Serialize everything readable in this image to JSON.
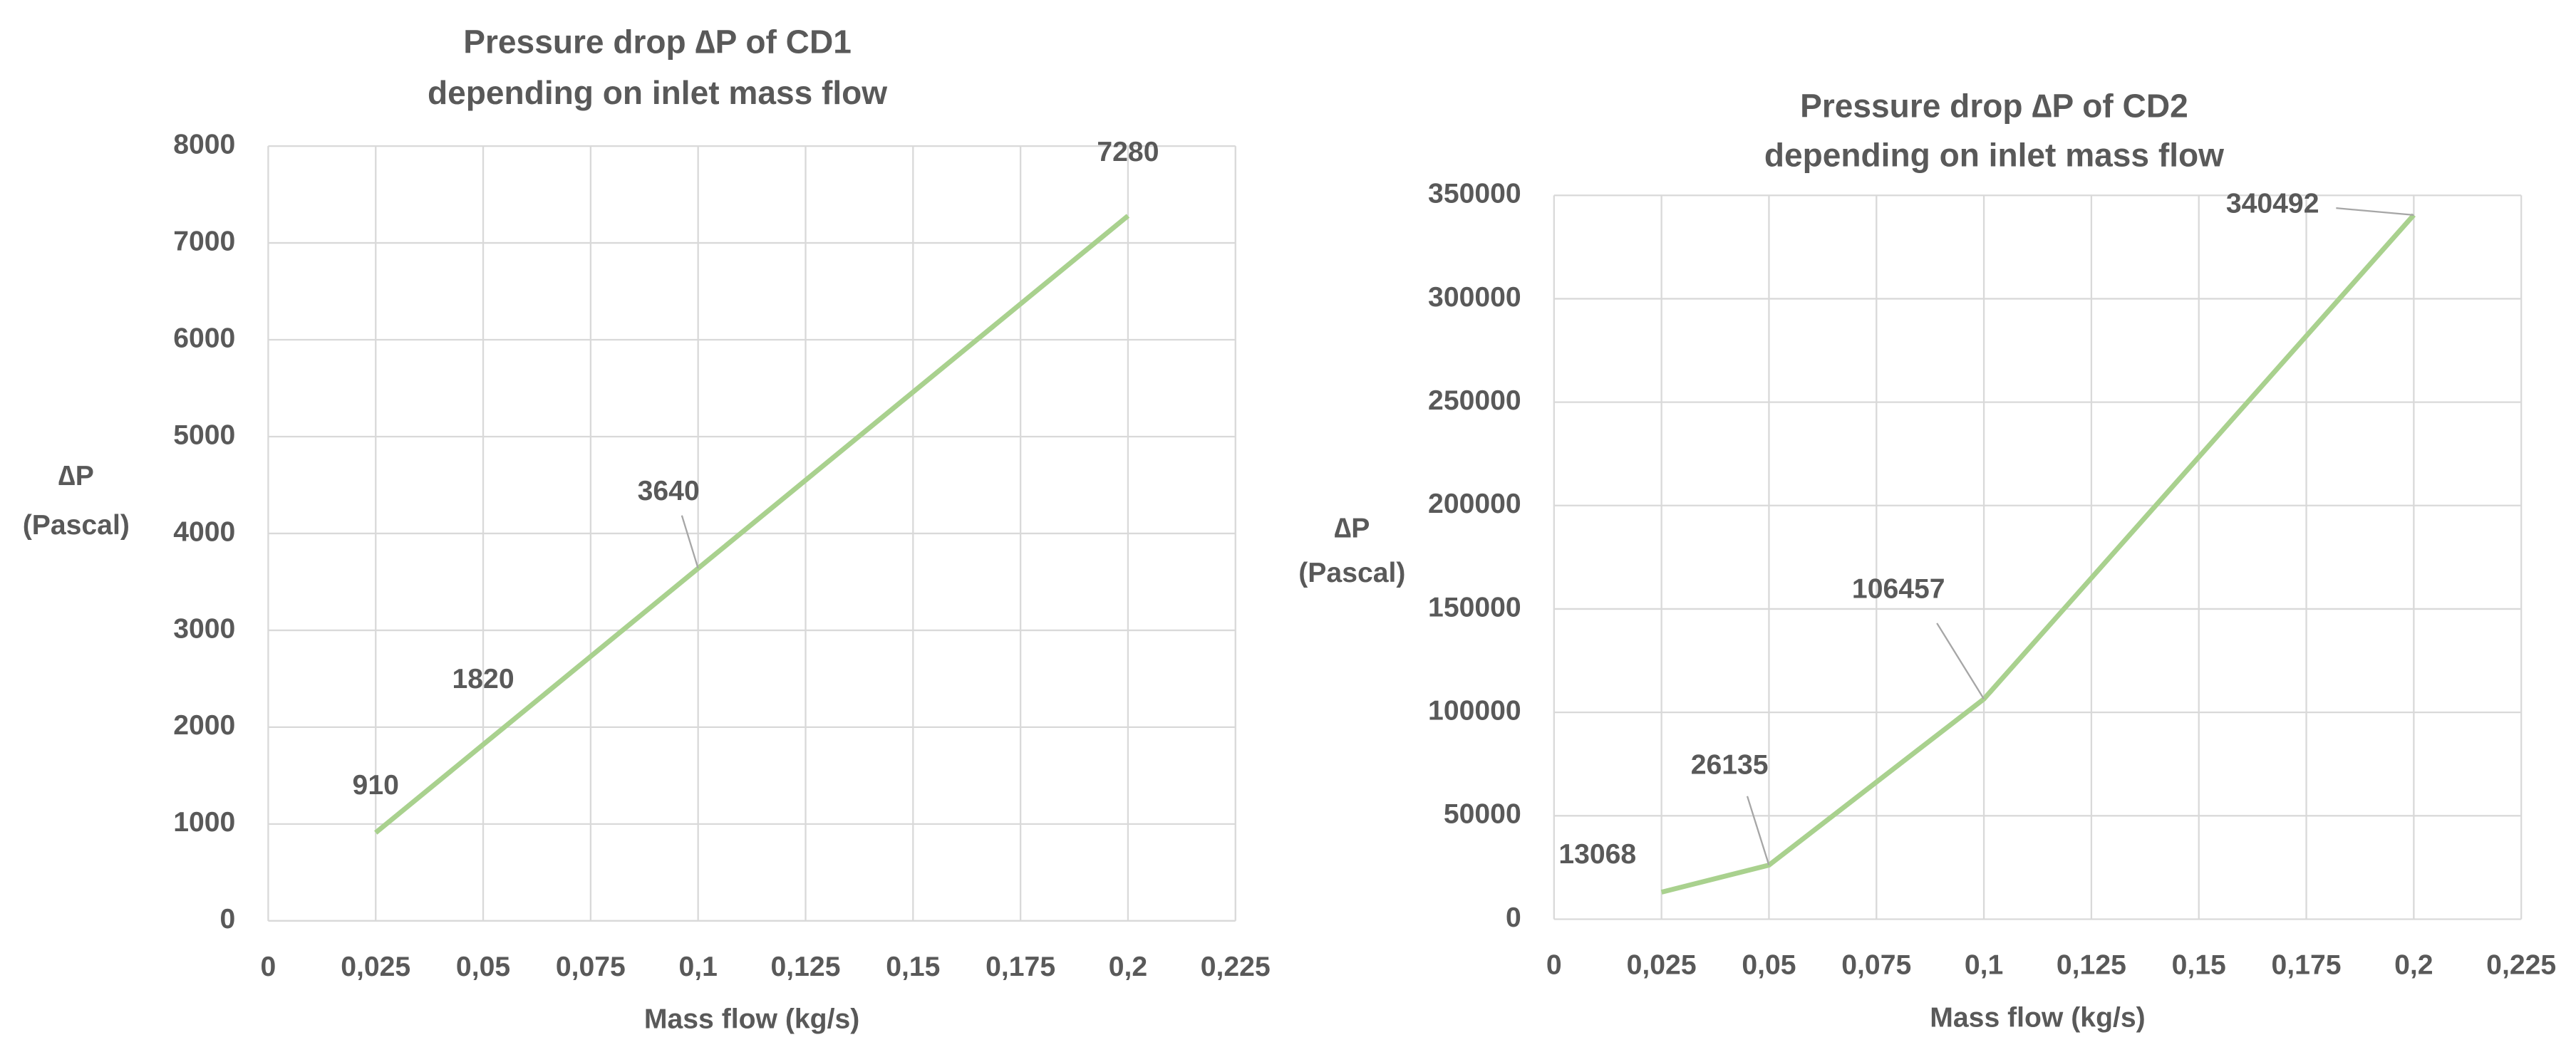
{
  "chart_data": [
    {
      "type": "line",
      "title": [
        "Pressure drop ∆P of CD1",
        "depending on inlet mass flow"
      ],
      "xlabel": "Mass flow (kg/s)",
      "ylabel": [
        "∆P",
        "(Pascal)"
      ],
      "x": [
        0.025,
        0.05,
        0.1,
        0.2
      ],
      "values": [
        910,
        1820,
        3640,
        7280
      ],
      "color": "#a9d18e",
      "xlim": [
        0,
        0.225
      ],
      "xticks": [
        0,
        {
          "value": 0.025,
          "label": "0,025"
        },
        {
          "value": 0.05,
          "label": "0,05"
        },
        {
          "value": 0.075,
          "label": "0,075"
        },
        {
          "value": 0.1,
          "label": "0,1"
        },
        {
          "value": 0.125,
          "label": "0,125"
        },
        {
          "value": 0.15,
          "label": "0,15"
        },
        {
          "value": 0.175,
          "label": "0,175"
        },
        {
          "value": 0.2,
          "label": "0,2"
        },
        {
          "value": 0.225,
          "label": "0,225"
        }
      ],
      "ylim": [
        0,
        8000
      ],
      "yticks": [
        0,
        1000,
        2000,
        3000,
        4000,
        5000,
        6000,
        7000,
        8000
      ],
      "grid": true
    },
    {
      "type": "line",
      "title": [
        "Pressure drop ∆P of CD2",
        "depending on inlet mass flow"
      ],
      "xlabel": "Mass flow (kg/s)",
      "ylabel": [
        "∆P",
        "(Pascal)"
      ],
      "x": [
        0.025,
        0.05,
        0.1,
        0.2
      ],
      "values": [
        13068,
        26135,
        106457,
        340492
      ],
      "color": "#a9d18e",
      "xlim": [
        0,
        0.225
      ],
      "xticks": [
        0,
        {
          "value": 0.025,
          "label": "0,025"
        },
        {
          "value": 0.05,
          "label": "0,05"
        },
        {
          "value": 0.075,
          "label": "0,075"
        },
        {
          "value": 0.1,
          "label": "0,1"
        },
        {
          "value": 0.125,
          "label": "0,125"
        },
        {
          "value": 0.15,
          "label": "0,15"
        },
        {
          "value": 0.175,
          "label": "0,175"
        },
        {
          "value": 0.2,
          "label": "0,2"
        },
        {
          "value": 0.225,
          "label": "0,225"
        }
      ],
      "ylim": [
        0,
        350000
      ],
      "yticks": [
        0,
        50000,
        100000,
        150000,
        200000,
        250000,
        300000,
        350000
      ],
      "grid": true
    }
  ]
}
